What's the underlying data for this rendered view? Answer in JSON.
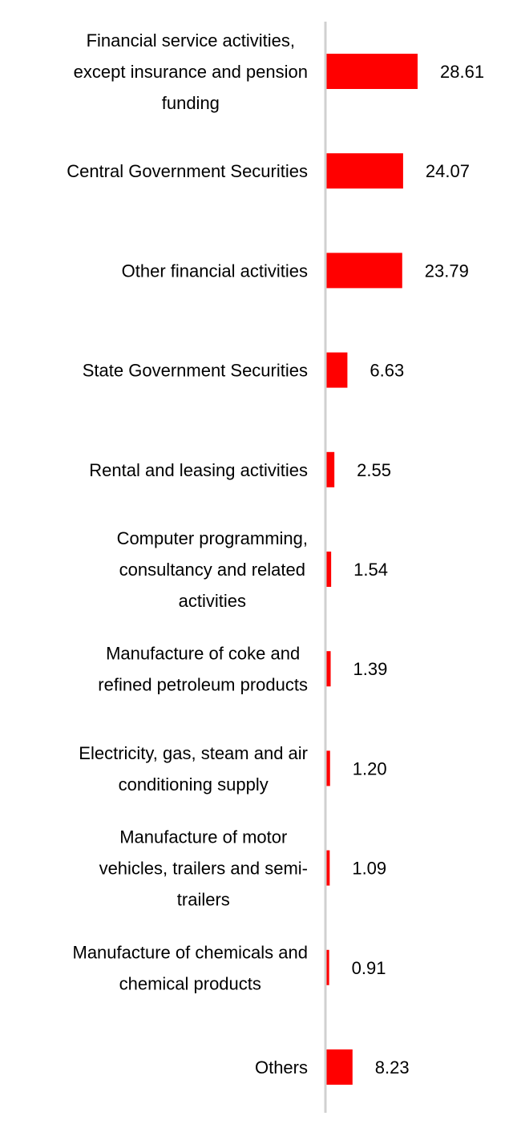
{
  "chart_data": {
    "type": "bar",
    "orientation": "horizontal",
    "title": "",
    "xlabel": "",
    "ylabel": "",
    "grid": false,
    "legend": "none",
    "xlim": [
      0,
      35
    ],
    "bar_color": "#ff0000",
    "axis_color": "#d0d0d0",
    "categories": [
      [
        "Financial service activities,",
        "except insurance and pension",
        "funding"
      ],
      [
        "Central Government Securities"
      ],
      [
        "Other financial activities"
      ],
      [
        "State Government Securities"
      ],
      [
        "Rental and leasing activities"
      ],
      [
        "Computer programming,",
        "consultancy and related",
        "activities"
      ],
      [
        "Manufacture of coke and",
        "refined petroleum products"
      ],
      [
        "Electricity, gas, steam and air",
        "conditioning supply"
      ],
      [
        "Manufacture of motor",
        "vehicles, trailers and semi-",
        "trailers"
      ],
      [
        "Manufacture of chemicals and",
        "chemical products"
      ],
      [
        "Others"
      ]
    ],
    "values": [
      28.61,
      24.07,
      23.79,
      6.63,
      2.55,
      1.54,
      1.39,
      1.2,
      1.09,
      0.91,
      8.23
    ],
    "value_labels": [
      "28.61",
      "24.07",
      "23.79",
      "6.63",
      "2.55",
      "1.54",
      "1.39",
      "1.20",
      "1.09",
      "0.91",
      "8.23"
    ]
  }
}
